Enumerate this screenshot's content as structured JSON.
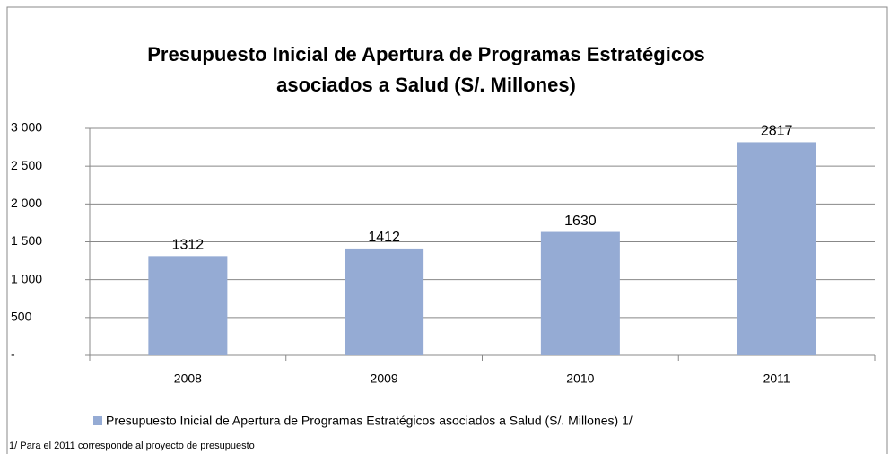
{
  "chart_data": {
    "type": "bar",
    "title": [
      "Presupuesto Inicial de Apertura de Programas Estratégicos",
      "asociados a Salud (S/. Millones)"
    ],
    "categories": [
      "2008",
      "2009",
      "2010",
      "2011"
    ],
    "series": [
      {
        "name": "Presupuesto Inicial de Apertura de Programas Estratégicos  asociados a Salud (S/. Millones) 1/",
        "color": "#95abd4",
        "values": [
          1312,
          1412,
          1630,
          2817
        ]
      }
    ],
    "ylim": [
      0,
      3000
    ],
    "yticks": [
      {
        "value": 0,
        "label": "-"
      },
      500,
      {
        "value": 1000,
        "label": "1 000"
      },
      {
        "value": 1500,
        "label": "1 500"
      },
      {
        "value": 2000,
        "label": "2 000"
      },
      {
        "value": 2500,
        "label": "2 500"
      },
      {
        "value": 3000,
        "label": "3 000"
      }
    ],
    "grid": true,
    "legend": "bottom",
    "footnote": "1/ Para el 2011 corresponde al proyecto de presupuesto"
  }
}
